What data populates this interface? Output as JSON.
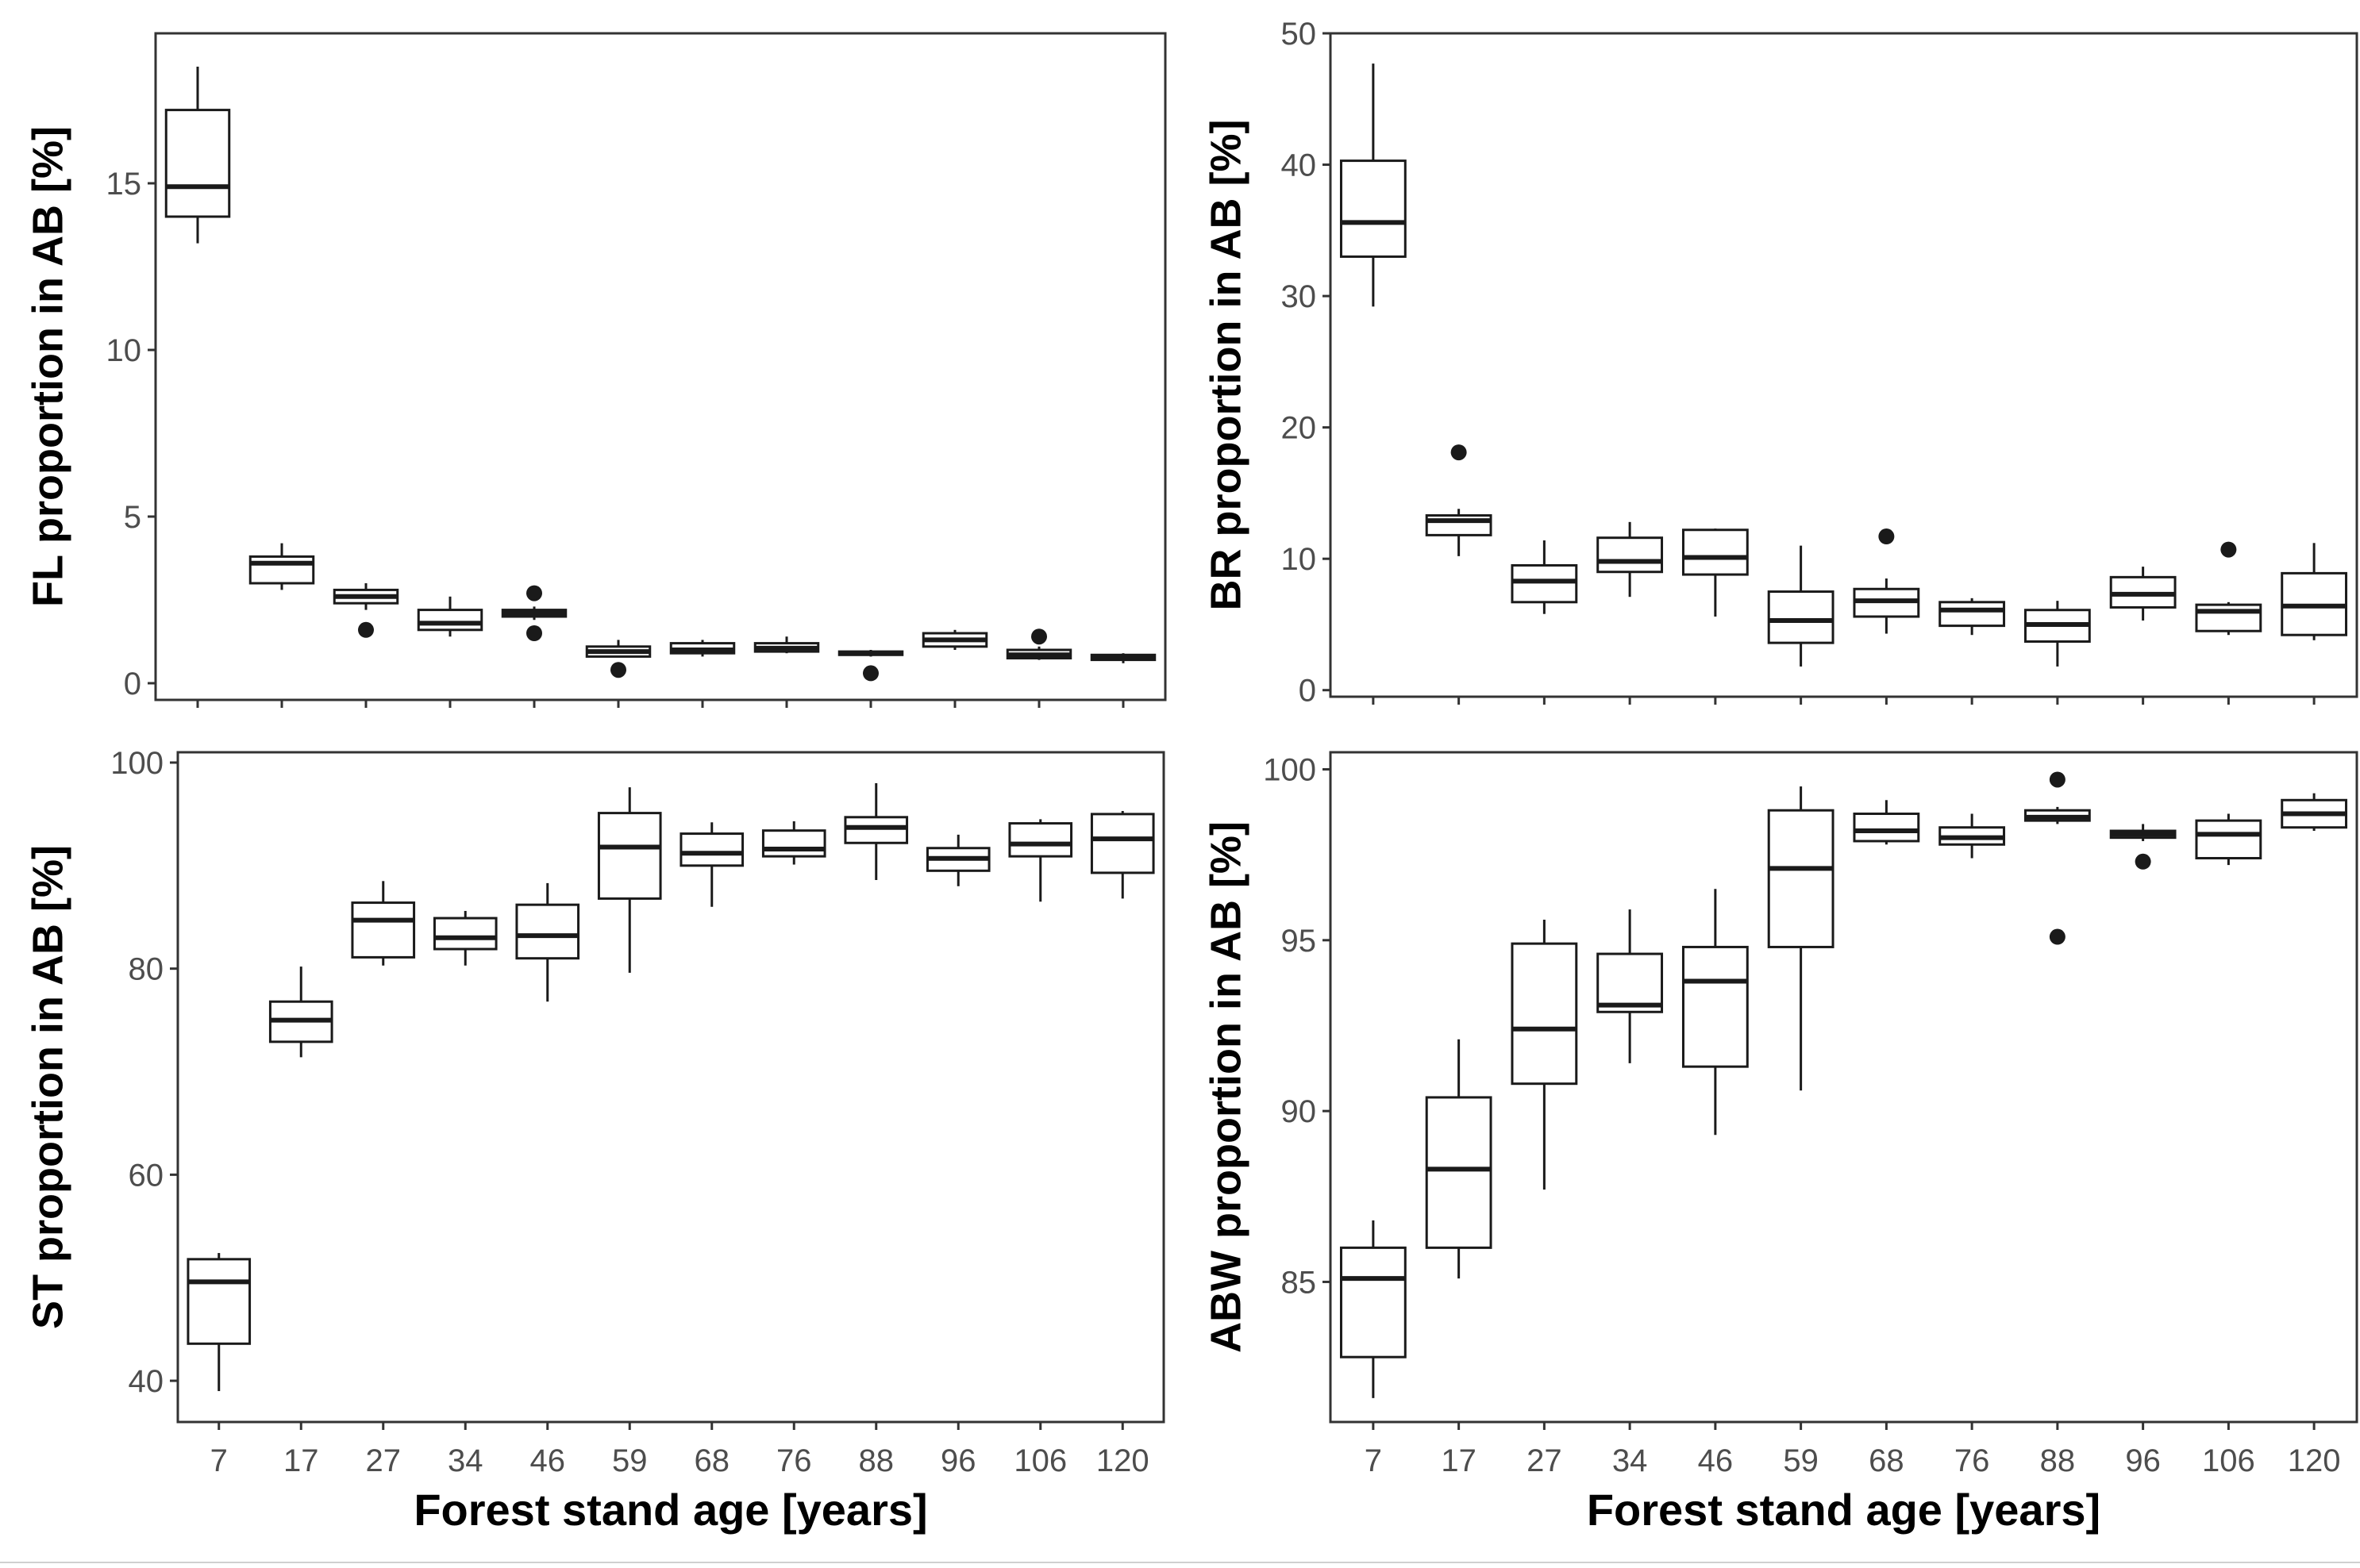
{
  "chart_data": [
    {
      "type": "box",
      "id": "fl",
      "ylabel": "FL proportion in AB [%]",
      "xlabel": "",
      "categories": [
        "7",
        "17",
        "27",
        "34",
        "46",
        "59",
        "68",
        "76",
        "88",
        "96",
        "106",
        "120"
      ],
      "ylim": [
        -0.5,
        19.5
      ],
      "yticks": [
        0,
        5,
        10,
        15
      ],
      "show_x_ticks": false,
      "boxes": [
        {
          "category": "7",
          "min": 13.2,
          "q1": 14.0,
          "median": 14.9,
          "q3": 17.2,
          "max": 18.5,
          "outliers": []
        },
        {
          "category": "17",
          "min": 2.8,
          "q1": 3.0,
          "median": 3.6,
          "q3": 3.8,
          "max": 4.2,
          "outliers": []
        },
        {
          "category": "27",
          "min": 2.2,
          "q1": 2.4,
          "median": 2.6,
          "q3": 2.8,
          "max": 3.0,
          "outliers": [
            1.6
          ]
        },
        {
          "category": "34",
          "min": 1.4,
          "q1": 1.6,
          "median": 1.8,
          "q3": 2.2,
          "max": 2.6,
          "outliers": []
        },
        {
          "category": "46",
          "min": 1.9,
          "q1": 2.0,
          "median": 2.1,
          "q3": 2.2,
          "max": 2.3,
          "outliers": [
            2.7,
            1.5
          ]
        },
        {
          "category": "59",
          "min": 0.8,
          "q1": 0.8,
          "median": 0.95,
          "q3": 1.1,
          "max": 1.3,
          "outliers": [
            0.4
          ]
        },
        {
          "category": "68",
          "min": 0.8,
          "q1": 0.9,
          "median": 1.0,
          "q3": 1.2,
          "max": 1.3,
          "outliers": []
        },
        {
          "category": "76",
          "min": 0.9,
          "q1": 0.95,
          "median": 1.05,
          "q3": 1.2,
          "max": 1.4,
          "outliers": []
        },
        {
          "category": "88",
          "min": 0.8,
          "q1": 0.85,
          "median": 0.9,
          "q3": 0.95,
          "max": 1.0,
          "outliers": [
            0.3
          ]
        },
        {
          "category": "96",
          "min": 1.0,
          "q1": 1.1,
          "median": 1.3,
          "q3": 1.5,
          "max": 1.6,
          "outliers": []
        },
        {
          "category": "106",
          "min": 0.7,
          "q1": 0.75,
          "median": 0.85,
          "q3": 1.0,
          "max": 1.1,
          "outliers": [
            1.4
          ]
        },
        {
          "category": "120",
          "min": 0.6,
          "q1": 0.7,
          "median": 0.75,
          "q3": 0.85,
          "max": 0.9,
          "outliers": []
        }
      ]
    },
    {
      "type": "box",
      "id": "br",
      "ylabel": "BR proportion in AB [%]",
      "xlabel": "",
      "categories": [
        "7",
        "17",
        "27",
        "34",
        "46",
        "59",
        "68",
        "76",
        "88",
        "96",
        "106",
        "120"
      ],
      "ylim": [
        -0.5,
        50
      ],
      "yticks": [
        0,
        10,
        20,
        30,
        40,
        50
      ],
      "show_x_ticks": false,
      "boxes": [
        {
          "category": "7",
          "min": 29.2,
          "q1": 33.0,
          "median": 35.6,
          "q3": 40.3,
          "max": 47.7,
          "outliers": []
        },
        {
          "category": "17",
          "min": 10.2,
          "q1": 11.8,
          "median": 12.9,
          "q3": 13.3,
          "max": 13.8,
          "outliers": [
            18.1
          ]
        },
        {
          "category": "27",
          "min": 5.8,
          "q1": 6.7,
          "median": 8.3,
          "q3": 9.5,
          "max": 11.4,
          "outliers": []
        },
        {
          "category": "34",
          "min": 7.1,
          "q1": 9.0,
          "median": 9.8,
          "q3": 11.6,
          "max": 12.8,
          "outliers": []
        },
        {
          "category": "46",
          "min": 5.6,
          "q1": 8.8,
          "median": 10.1,
          "q3": 12.2,
          "max": 12.3,
          "outliers": []
        },
        {
          "category": "59",
          "min": 1.8,
          "q1": 3.6,
          "median": 5.3,
          "q3": 7.5,
          "max": 11.0,
          "outliers": []
        },
        {
          "category": "68",
          "min": 4.3,
          "q1": 5.6,
          "median": 6.8,
          "q3": 7.7,
          "max": 8.5,
          "outliers": [
            11.7
          ]
        },
        {
          "category": "76",
          "min": 4.2,
          "q1": 4.9,
          "median": 6.1,
          "q3": 6.7,
          "max": 7.0,
          "outliers": []
        },
        {
          "category": "88",
          "min": 1.8,
          "q1": 3.7,
          "median": 5.0,
          "q3": 6.1,
          "max": 6.8,
          "outliers": []
        },
        {
          "category": "96",
          "min": 5.3,
          "q1": 6.3,
          "median": 7.3,
          "q3": 8.6,
          "max": 9.4,
          "outliers": []
        },
        {
          "category": "106",
          "min": 4.2,
          "q1": 4.5,
          "median": 6.0,
          "q3": 6.5,
          "max": 6.7,
          "outliers": [
            10.7
          ]
        },
        {
          "category": "120",
          "min": 3.8,
          "q1": 4.2,
          "median": 6.4,
          "q3": 8.9,
          "max": 11.2,
          "outliers": []
        }
      ]
    },
    {
      "type": "box",
      "id": "st",
      "ylabel": "ST proportion in AB [%]",
      "xlabel": "Forest stand age [years]",
      "categories": [
        "7",
        "17",
        "27",
        "34",
        "46",
        "59",
        "68",
        "76",
        "88",
        "96",
        "106",
        "120"
      ],
      "ylim": [
        36,
        101
      ],
      "yticks": [
        40,
        60,
        80,
        100
      ],
      "show_x_ticks": true,
      "boxes": [
        {
          "category": "7",
          "min": 39.0,
          "q1": 43.6,
          "median": 49.6,
          "q3": 51.8,
          "max": 52.4,
          "outliers": []
        },
        {
          "category": "17",
          "min": 71.4,
          "q1": 72.9,
          "median": 75.0,
          "q3": 76.8,
          "max": 80.2,
          "outliers": []
        },
        {
          "category": "27",
          "min": 80.3,
          "q1": 81.1,
          "median": 84.7,
          "q3": 86.4,
          "max": 88.5,
          "outliers": []
        },
        {
          "category": "34",
          "min": 80.3,
          "q1": 81.9,
          "median": 83.0,
          "q3": 84.9,
          "max": 85.6,
          "outliers": []
        },
        {
          "category": "46",
          "min": 76.8,
          "q1": 81.0,
          "median": 83.2,
          "q3": 86.2,
          "max": 88.3,
          "outliers": []
        },
        {
          "category": "59",
          "min": 79.6,
          "q1": 86.8,
          "median": 91.8,
          "q3": 95.1,
          "max": 97.6,
          "outliers": []
        },
        {
          "category": "68",
          "min": 86.0,
          "q1": 90.0,
          "median": 91.2,
          "q3": 93.1,
          "max": 94.2,
          "outliers": []
        },
        {
          "category": "76",
          "min": 90.1,
          "q1": 90.9,
          "median": 91.6,
          "q3": 93.4,
          "max": 94.3,
          "outliers": []
        },
        {
          "category": "88",
          "min": 88.6,
          "q1": 92.2,
          "median": 93.7,
          "q3": 94.7,
          "max": 98.0,
          "outliers": []
        },
        {
          "category": "96",
          "min": 88.0,
          "q1": 89.5,
          "median": 90.7,
          "q3": 91.7,
          "max": 93.0,
          "outliers": []
        },
        {
          "category": "106",
          "min": 86.5,
          "q1": 90.9,
          "median": 92.1,
          "q3": 94.1,
          "max": 94.5,
          "outliers": []
        },
        {
          "category": "120",
          "min": 86.8,
          "q1": 89.3,
          "median": 92.6,
          "q3": 95.0,
          "max": 95.3,
          "outliers": []
        }
      ]
    },
    {
      "type": "box",
      "id": "abw",
      "ylabel": "ABW proportion in AB [%]",
      "xlabel": "Forest stand age [years]",
      "categories": [
        "7",
        "17",
        "27",
        "34",
        "46",
        "59",
        "68",
        "76",
        "88",
        "96",
        "106",
        "120"
      ],
      "ylim": [
        80.9,
        100.5
      ],
      "yticks": [
        85,
        90,
        95,
        100
      ],
      "show_x_ticks": true,
      "boxes": [
        {
          "category": "7",
          "min": 81.6,
          "q1": 82.8,
          "median": 85.1,
          "q3": 86.0,
          "max": 86.8,
          "outliers": []
        },
        {
          "category": "17",
          "min": 85.1,
          "q1": 86.0,
          "median": 88.3,
          "q3": 90.4,
          "max": 92.1,
          "outliers": []
        },
        {
          "category": "27",
          "min": 87.7,
          "q1": 90.8,
          "median": 92.4,
          "q3": 94.9,
          "max": 95.6,
          "outliers": []
        },
        {
          "category": "34",
          "min": 91.4,
          "q1": 92.9,
          "median": 93.1,
          "q3": 94.6,
          "max": 95.9,
          "outliers": []
        },
        {
          "category": "46",
          "min": 89.3,
          "q1": 91.3,
          "median": 93.8,
          "q3": 94.8,
          "max": 96.5,
          "outliers": []
        },
        {
          "category": "59",
          "min": 90.6,
          "q1": 94.8,
          "median": 97.1,
          "q3": 98.8,
          "max": 99.5,
          "outliers": []
        },
        {
          "category": "68",
          "min": 97.8,
          "q1": 97.9,
          "median": 98.2,
          "q3": 98.7,
          "max": 99.1,
          "outliers": []
        },
        {
          "category": "76",
          "min": 97.4,
          "q1": 97.8,
          "median": 98.0,
          "q3": 98.3,
          "max": 98.7,
          "outliers": []
        },
        {
          "category": "88",
          "min": 98.4,
          "q1": 98.5,
          "median": 98.6,
          "q3": 98.8,
          "max": 98.9,
          "outliers": [
            99.7,
            95.1
          ]
        },
        {
          "category": "96",
          "min": 97.9,
          "q1": 98.0,
          "median": 98.1,
          "q3": 98.2,
          "max": 98.4,
          "outliers": [
            97.3
          ]
        },
        {
          "category": "106",
          "min": 97.2,
          "q1": 97.4,
          "median": 98.1,
          "q3": 98.5,
          "max": 98.7,
          "outliers": []
        },
        {
          "category": "120",
          "min": 98.2,
          "q1": 98.3,
          "median": 98.7,
          "q3": 99.1,
          "max": 99.3,
          "outliers": []
        }
      ]
    }
  ]
}
